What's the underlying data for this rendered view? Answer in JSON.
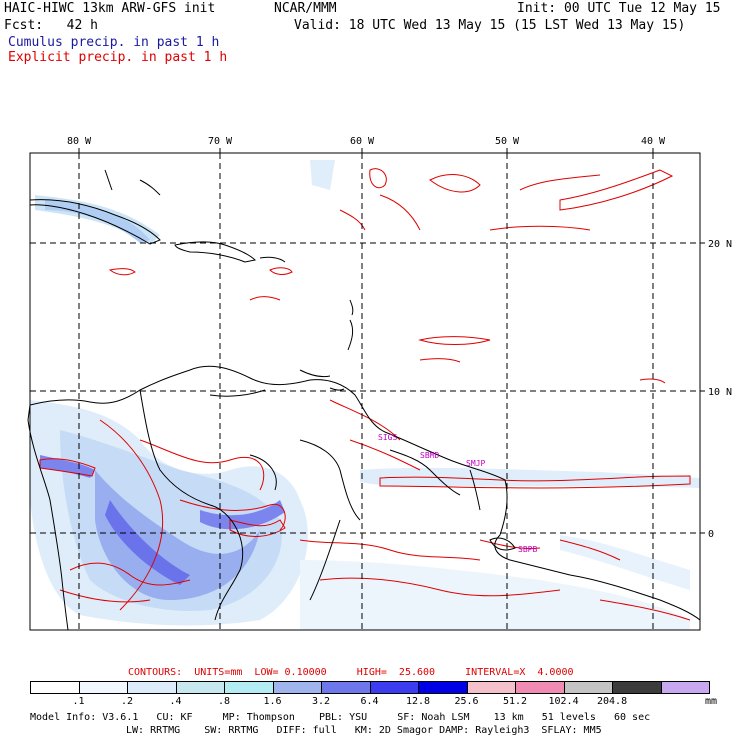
{
  "header": {
    "model": "HAIC-HIWC 13km ARW-GFS init",
    "org": "NCAR/MMM",
    "init": "Init: 00 UTC Tue 12 May 15",
    "fcst": "Fcst:   42 h",
    "valid": "Valid: 18 UTC Wed 13 May 15 (15 LST Wed 13 May 15)"
  },
  "legend": {
    "cumulus": "Cumulus precip. in past 1 h",
    "explicit": "Explicit precip. in past 1 h"
  },
  "axes": {
    "lon_labels": [
      "80 W",
      "70 W",
      "60 W",
      "50 W",
      "40 W"
    ],
    "lat_labels": [
      "20 N",
      "10 N",
      "0"
    ]
  },
  "contours": {
    "label": "CONTOURS:  UNITS=mm  LOW= 0.10000     HIGH=  25.600     INTERVAL=X  4.0000"
  },
  "colorbar": {
    "values": [
      ".1",
      ".2",
      ".4",
      ".8",
      "1.6",
      "3.2",
      "6.4",
      "12.8",
      "25.6",
      "51.2",
      "102.4",
      "204.8"
    ],
    "unit": "mm",
    "colors": [
      "#ffffff",
      "#f2f8ff",
      "#dcecfa",
      "#c8e8f0",
      "#b4ecf4",
      "#a0b4ee",
      "#6e78ec",
      "#3c3cf0",
      "#0000e6",
      "#f4c0cc",
      "#f08cb4",
      "#c4c4c4",
      "#3c3c3c",
      "#c8a8f0"
    ]
  },
  "model_info": {
    "line1": "Model Info: V3.6.1   CU: KF     MP: Thompson    PBL: YSU     SF: Noah LSM    13 km   51 levels   60 sec",
    "line2": "LW: RRTMG    SW: RRTMG   DIFF: full   KM: 2D Smagor DAMP: Rayleigh3  SFLAY: MM5"
  },
  "annotations": [
    "SIGS",
    "SBMD",
    "SMJP",
    "SBPB"
  ],
  "colors": {
    "explicit": "#e00000",
    "cumulus": "#1a1aa0",
    "grid": "#000000"
  }
}
